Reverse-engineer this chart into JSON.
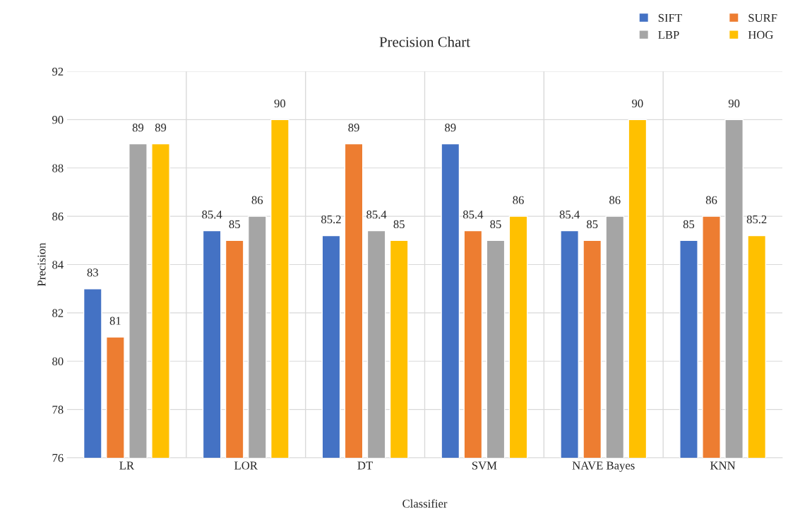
{
  "chart_data": {
    "type": "bar",
    "title": "Precision Chart",
    "xlabel": "Classifier",
    "ylabel": "Precision",
    "categories": [
      "LR",
      "LOR",
      "DT",
      "SVM",
      "NAVE Bayes",
      "KNN"
    ],
    "series": [
      {
        "name": "SIFT",
        "color": "#4472c4",
        "values": [
          83,
          85.4,
          85.2,
          89,
          85.4,
          85
        ]
      },
      {
        "name": "SURF",
        "color": "#ed7d31",
        "values": [
          81,
          85,
          89,
          85.4,
          85,
          86
        ]
      },
      {
        "name": "LBP",
        "color": "#a5a5a5",
        "values": [
          89,
          86,
          85.4,
          85,
          86,
          90
        ]
      },
      {
        "name": "HOG",
        "color": "#ffc000",
        "values": [
          89,
          90,
          85,
          86,
          90,
          85.2
        ]
      }
    ],
    "ylim": [
      76,
      92
    ],
    "yticks": [
      76,
      78,
      80,
      82,
      84,
      86,
      88,
      90,
      92
    ],
    "grid": true,
    "legend": "top right",
    "data_labels": true
  }
}
